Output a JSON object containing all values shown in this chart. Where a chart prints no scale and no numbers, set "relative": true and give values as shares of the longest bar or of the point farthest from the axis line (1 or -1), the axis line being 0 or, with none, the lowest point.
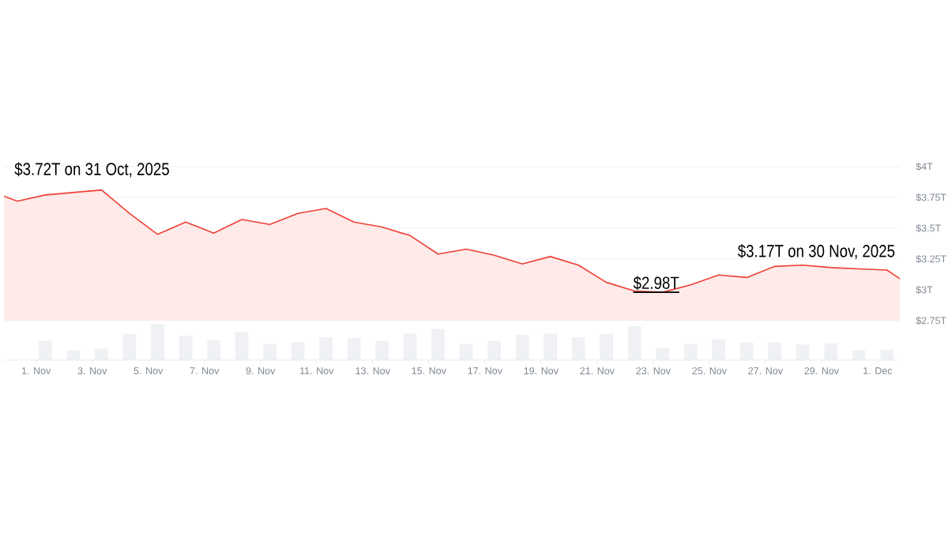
{
  "chart_data": [
    {
      "type": "area",
      "color": "#ee4035",
      "annotations": [
        {
          "text": "$3.72T on 31 Oct, 2025",
          "x": "2025-10-31T08:00",
          "y": 3.72
        },
        {
          "text": "$2.98T",
          "x": "2025-11-23T08:00",
          "y": 2.98
        },
        {
          "text": "$3.17T on 30 Nov, 2025",
          "x": "2025-11-30T08:00",
          "y": 3.17
        }
      ],
      "x": [
        "2025-10-30T20:30",
        "2025-10-31T08:00",
        "2025-11-01T08:00",
        "2025-11-02T08:00",
        "2025-11-03T08:00",
        "2025-11-04T08:00",
        "2025-11-05T08:00",
        "2025-11-06T08:00",
        "2025-11-07T08:00",
        "2025-11-08T08:00",
        "2025-11-09T08:00",
        "2025-11-10T08:00",
        "2025-11-11T08:00",
        "2025-11-12T08:00",
        "2025-11-13T08:00",
        "2025-11-14T08:00",
        "2025-11-15T08:00",
        "2025-11-16T08:00",
        "2025-11-17T08:00",
        "2025-11-18T08:00",
        "2025-11-19T08:00",
        "2025-11-20T08:00",
        "2025-11-21T08:00",
        "2025-11-22T08:00",
        "2025-11-23T08:00",
        "2025-11-24T08:00",
        "2025-11-25T08:00",
        "2025-11-26T08:00",
        "2025-11-27T08:00",
        "2025-11-28T08:00",
        "2025-11-29T08:00",
        "2025-11-30T08:00",
        "2025-12-01T08:00",
        "2025-12-01T19:00"
      ],
      "values": [
        3.76,
        3.72,
        3.77,
        3.79,
        3.81,
        3.62,
        3.45,
        3.55,
        3.46,
        3.57,
        3.53,
        3.62,
        3.66,
        3.55,
        3.51,
        3.44,
        3.29,
        3.33,
        3.28,
        3.21,
        3.27,
        3.2,
        3.06,
        2.99,
        2.98,
        3.04,
        3.12,
        3.1,
        3.19,
        3.2,
        3.18,
        3.17,
        3.16,
        3.09
      ],
      "xlim": [
        "2025-10-30T20:30",
        "2025-12-01T19:00"
      ],
      "ylim": [
        2.75,
        4
      ],
      "yticks": [
        {
          "value": 2.75,
          "label": "$2.75T"
        },
        {
          "value": 3,
          "label": "$3T"
        },
        {
          "value": 3.25,
          "label": "$3.25T"
        },
        {
          "value": 3.5,
          "label": "$3.5T"
        },
        {
          "value": 3.75,
          "label": "$3.75T"
        },
        {
          "value": 4,
          "label": "$4T"
        }
      ],
      "grid": "y",
      "tick_labels": "y"
    },
    {
      "type": "bar",
      "relative": true,
      "color": "#eff1f4",
      "x": [
        "2025-11-01T08:00",
        "2025-11-02T08:00",
        "2025-11-03T08:00",
        "2025-11-04T08:00",
        "2025-11-05T08:00",
        "2025-11-06T08:00",
        "2025-11-07T08:00",
        "2025-11-08T08:00",
        "2025-11-09T08:00",
        "2025-11-10T08:00",
        "2025-11-11T08:00",
        "2025-11-12T08:00",
        "2025-11-13T08:00",
        "2025-11-14T08:00",
        "2025-11-15T08:00",
        "2025-11-16T08:00",
        "2025-11-17T08:00",
        "2025-11-18T08:00",
        "2025-11-19T08:00",
        "2025-11-20T08:00",
        "2025-11-21T08:00",
        "2025-11-22T08:00",
        "2025-11-23T08:00",
        "2025-11-24T08:00",
        "2025-11-25T08:00",
        "2025-11-26T08:00",
        "2025-11-27T08:00",
        "2025-11-28T08:00",
        "2025-11-29T08:00",
        "2025-11-30T08:00",
        "2025-12-01T08:00"
      ],
      "values": [
        0.54,
        0.27,
        0.32,
        0.73,
        1,
        0.68,
        0.56,
        0.78,
        0.45,
        0.5,
        0.64,
        0.61,
        0.54,
        0.74,
        0.87,
        0.45,
        0.54,
        0.7,
        0.74,
        0.64,
        0.73,
        0.95,
        0.34,
        0.45,
        0.58,
        0.49,
        0.49,
        0.43,
        0.47,
        0.27,
        0.29
      ],
      "xlim": [
        "2025-10-30T20:30",
        "2025-12-01T19:00"
      ],
      "xticks": [
        {
          "value": "2025-11-01",
          "label": "1. Nov"
        },
        {
          "value": "2025-11-03",
          "label": "3. Nov"
        },
        {
          "value": "2025-11-05",
          "label": "5. Nov"
        },
        {
          "value": "2025-11-07",
          "label": "7. Nov"
        },
        {
          "value": "2025-11-09",
          "label": "9. Nov"
        },
        {
          "value": "2025-11-11",
          "label": "11. Nov"
        },
        {
          "value": "2025-11-13",
          "label": "13. Nov"
        },
        {
          "value": "2025-11-15",
          "label": "15. Nov"
        },
        {
          "value": "2025-11-17",
          "label": "17. Nov"
        },
        {
          "value": "2025-11-19",
          "label": "19. Nov"
        },
        {
          "value": "2025-11-21",
          "label": "21. Nov"
        },
        {
          "value": "2025-11-23",
          "label": "23. Nov"
        },
        {
          "value": "2025-11-25",
          "label": "25. Nov"
        },
        {
          "value": "2025-11-27",
          "label": "27. Nov"
        },
        {
          "value": "2025-11-29",
          "label": "29. Nov"
        },
        {
          "value": "2025-12-01",
          "label": "1. Dec"
        }
      ],
      "tick_labels": "x"
    }
  ]
}
